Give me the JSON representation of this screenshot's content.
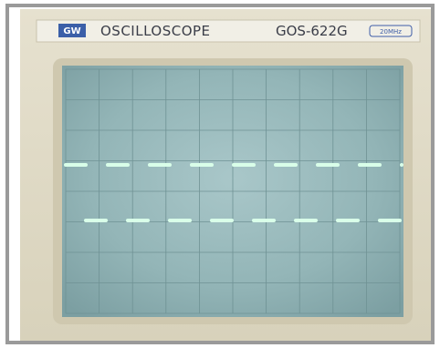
{
  "header": {
    "brand": "GW",
    "product": "OSCILLOSCOPE",
    "model": "GOS-622G",
    "bandwidth": "20MHz"
  }
}
